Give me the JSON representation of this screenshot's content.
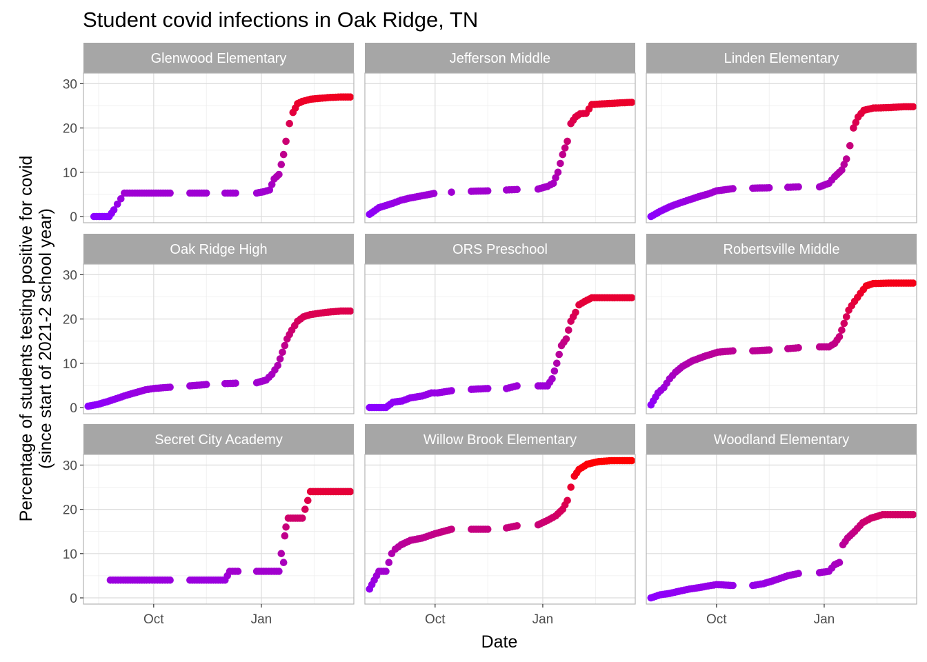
{
  "chart_data": {
    "type": "scatter",
    "layout": "facet_wrap",
    "title": "Student covid infections in Oak Ridge, TN",
    "xlabel": "Date",
    "ylabel_lines": [
      "Percentage of students testing positive for covid",
      "(since start of 2021-2 school year)"
    ],
    "x_range": [
      "2021-08-02",
      "2022-03-21"
    ],
    "y_range": [
      -1.4,
      32.4
    ],
    "x_ticks": [
      {
        "date": "2021-10-01",
        "label": "Oct"
      },
      {
        "date": "2022-01-01",
        "label": "Jan"
      }
    ],
    "x_minor_ticks": [
      "2021-08-15",
      "2021-11-15",
      "2022-02-15"
    ],
    "y_ticks": [
      0,
      10,
      20,
      30
    ],
    "y_minor_ticks": [
      5,
      15,
      25
    ],
    "color_scale": {
      "low": "#8b00ff",
      "high": "#ff0000",
      "min": 0,
      "max": 31
    },
    "grid": true,
    "facets": [
      {
        "name": "Glenwood Elementary",
        "series": [
          [
            "2021-08-11",
            0
          ],
          [
            "2021-08-18",
            0
          ],
          [
            "2021-08-24",
            0
          ],
          [
            "2021-08-28",
            1.5
          ],
          [
            "2021-08-31",
            2.8
          ],
          [
            "2021-09-03",
            4.0
          ],
          [
            "2021-09-06",
            5.3
          ],
          [
            "2021-09-15",
            5.3
          ],
          [
            "2021-09-25",
            5.3
          ],
          [
            "2021-10-03",
            5.3
          ],
          [
            "2021-10-15",
            5.3
          ],
          [
            "2021-11-01",
            5.3
          ],
          [
            "2021-11-15",
            5.3
          ],
          [
            "2021-12-01",
            5.3
          ],
          [
            "2021-12-10",
            5.3
          ],
          [
            "2021-12-28",
            5.3
          ],
          [
            "2022-01-03",
            5.6
          ],
          [
            "2022-01-08",
            6.0
          ],
          [
            "2022-01-12",
            8.5
          ],
          [
            "2022-01-16",
            9.5
          ],
          [
            "2022-01-20",
            14.0
          ],
          [
            "2022-01-22",
            17.0
          ],
          [
            "2022-01-25",
            21.0
          ],
          [
            "2022-01-28",
            23.5
          ],
          [
            "2022-02-01",
            25.5
          ],
          [
            "2022-02-05",
            26.0
          ],
          [
            "2022-02-12",
            26.5
          ],
          [
            "2022-02-20",
            26.7
          ],
          [
            "2022-03-01",
            26.9
          ],
          [
            "2022-03-10",
            27.0
          ],
          [
            "2022-03-18",
            27.0
          ]
        ]
      },
      {
        "name": "Jefferson Middle",
        "series": [
          [
            "2021-08-06",
            0.5
          ],
          [
            "2021-08-14",
            2.0
          ],
          [
            "2021-08-20",
            2.5
          ],
          [
            "2021-08-26",
            3.0
          ],
          [
            "2021-09-02",
            3.7
          ],
          [
            "2021-09-10",
            4.2
          ],
          [
            "2021-09-20",
            4.7
          ],
          [
            "2021-09-30",
            5.2
          ],
          [
            "2021-10-15",
            5.5
          ],
          [
            "2021-11-01",
            5.7
          ],
          [
            "2021-11-15",
            5.8
          ],
          [
            "2021-12-01",
            6.0
          ],
          [
            "2021-12-10",
            6.1
          ],
          [
            "2021-12-28",
            6.2
          ],
          [
            "2022-01-05",
            6.8
          ],
          [
            "2022-01-10",
            7.5
          ],
          [
            "2022-01-14",
            10.0
          ],
          [
            "2022-01-18",
            14.0
          ],
          [
            "2022-01-22",
            17.0
          ],
          [
            "2022-01-25",
            21.0
          ],
          [
            "2022-01-29",
            22.5
          ],
          [
            "2022-02-02",
            23.2
          ],
          [
            "2022-02-07",
            23.3
          ],
          [
            "2022-02-12",
            25.3
          ],
          [
            "2022-02-25",
            25.5
          ],
          [
            "2022-03-10",
            25.7
          ],
          [
            "2022-03-18",
            25.8
          ]
        ]
      },
      {
        "name": "Linden Elementary",
        "series": [
          [
            "2021-08-06",
            0
          ],
          [
            "2021-08-14",
            1.2
          ],
          [
            "2021-08-22",
            2.2
          ],
          [
            "2021-08-30",
            3.0
          ],
          [
            "2021-09-08",
            3.8
          ],
          [
            "2021-09-16",
            4.5
          ],
          [
            "2021-09-24",
            5.1
          ],
          [
            "2021-10-01",
            5.8
          ],
          [
            "2021-10-15",
            6.3
          ],
          [
            "2021-11-01",
            6.4
          ],
          [
            "2021-11-15",
            6.5
          ],
          [
            "2021-12-01",
            6.6
          ],
          [
            "2021-12-10",
            6.7
          ],
          [
            "2021-12-28",
            6.7
          ],
          [
            "2022-01-05",
            7.5
          ],
          [
            "2022-01-10",
            9.0
          ],
          [
            "2022-01-16",
            10.5
          ],
          [
            "2022-01-20",
            13.0
          ],
          [
            "2022-01-23",
            16.0
          ],
          [
            "2022-01-26",
            20.0
          ],
          [
            "2022-01-30",
            22.5
          ],
          [
            "2022-02-04",
            24.0
          ],
          [
            "2022-02-12",
            24.5
          ],
          [
            "2022-02-25",
            24.6
          ],
          [
            "2022-03-10",
            24.8
          ],
          [
            "2022-03-18",
            24.8
          ]
        ]
      },
      {
        "name": "Oak Ridge High",
        "series": [
          [
            "2021-08-06",
            0.3
          ],
          [
            "2021-08-14",
            0.7
          ],
          [
            "2021-08-22",
            1.3
          ],
          [
            "2021-08-30",
            2.0
          ],
          [
            "2021-09-08",
            2.8
          ],
          [
            "2021-09-16",
            3.4
          ],
          [
            "2021-09-24",
            4.0
          ],
          [
            "2021-10-01",
            4.3
          ],
          [
            "2021-10-15",
            4.6
          ],
          [
            "2021-11-01",
            4.9
          ],
          [
            "2021-11-15",
            5.2
          ],
          [
            "2021-12-01",
            5.4
          ],
          [
            "2021-12-10",
            5.5
          ],
          [
            "2021-12-28",
            5.6
          ],
          [
            "2022-01-05",
            6.2
          ],
          [
            "2022-01-10",
            7.5
          ],
          [
            "2022-01-15",
            9.5
          ],
          [
            "2022-01-19",
            12.5
          ],
          [
            "2022-01-23",
            15.5
          ],
          [
            "2022-01-27",
            17.5
          ],
          [
            "2022-02-01",
            19.5
          ],
          [
            "2022-02-06",
            20.5
          ],
          [
            "2022-02-12",
            21.0
          ],
          [
            "2022-02-25",
            21.5
          ],
          [
            "2022-03-10",
            21.8
          ],
          [
            "2022-03-18",
            21.8
          ]
        ]
      },
      {
        "name": "ORS Preschool",
        "series": [
          [
            "2021-08-06",
            0
          ],
          [
            "2021-08-14",
            0
          ],
          [
            "2021-08-20",
            0
          ],
          [
            "2021-08-26",
            1.2
          ],
          [
            "2021-09-03",
            1.5
          ],
          [
            "2021-09-10",
            2.2
          ],
          [
            "2021-09-20",
            2.6
          ],
          [
            "2021-09-28",
            3.3
          ],
          [
            "2021-10-03",
            3.3
          ],
          [
            "2021-10-15",
            3.8
          ],
          [
            "2021-11-01",
            4.1
          ],
          [
            "2021-11-15",
            4.3
          ],
          [
            "2021-12-01",
            4.3
          ],
          [
            "2021-12-10",
            4.9
          ],
          [
            "2021-12-28",
            4.9
          ],
          [
            "2022-01-05",
            4.9
          ],
          [
            "2022-01-09",
            6.5
          ],
          [
            "2022-01-13",
            10.0
          ],
          [
            "2022-01-17",
            14.0
          ],
          [
            "2022-01-21",
            15.5
          ],
          [
            "2022-01-25",
            19.5
          ],
          [
            "2022-01-29",
            21.5
          ],
          [
            "2022-02-01",
            23.2
          ],
          [
            "2022-02-06",
            24.0
          ],
          [
            "2022-02-12",
            24.8
          ],
          [
            "2022-02-25",
            24.8
          ],
          [
            "2022-03-10",
            24.8
          ],
          [
            "2022-03-18",
            24.8
          ]
        ]
      },
      {
        "name": "Robertsville Middle",
        "series": [
          [
            "2021-08-06",
            0.6
          ],
          [
            "2021-08-12",
            3.3
          ],
          [
            "2021-08-17",
            4.5
          ],
          [
            "2021-08-22",
            6.5
          ],
          [
            "2021-08-27",
            8.0
          ],
          [
            "2021-09-02",
            9.3
          ],
          [
            "2021-09-10",
            10.5
          ],
          [
            "2021-09-20",
            11.5
          ],
          [
            "2021-10-02",
            12.5
          ],
          [
            "2021-10-15",
            12.8
          ],
          [
            "2021-11-01",
            12.8
          ],
          [
            "2021-11-15",
            13.0
          ],
          [
            "2021-12-01",
            13.3
          ],
          [
            "2021-12-10",
            13.5
          ],
          [
            "2021-12-28",
            13.7
          ],
          [
            "2022-01-05",
            13.7
          ],
          [
            "2022-01-10",
            14.5
          ],
          [
            "2022-01-14",
            16.0
          ],
          [
            "2022-01-18",
            19.0
          ],
          [
            "2022-01-22",
            22.0
          ],
          [
            "2022-01-27",
            24.0
          ],
          [
            "2022-02-01",
            25.8
          ],
          [
            "2022-02-06",
            27.5
          ],
          [
            "2022-02-12",
            28.0
          ],
          [
            "2022-02-25",
            28.1
          ],
          [
            "2022-03-10",
            28.1
          ],
          [
            "2022-03-18",
            28.1
          ]
        ]
      },
      {
        "name": "Secret City Academy",
        "series": [
          [
            "2021-08-25",
            4.0
          ],
          [
            "2021-09-05",
            4.0
          ],
          [
            "2021-09-15",
            4.0
          ],
          [
            "2021-09-25",
            4.0
          ],
          [
            "2021-10-02",
            4.0
          ],
          [
            "2021-10-15",
            4.0
          ],
          [
            "2021-11-01",
            4.0
          ],
          [
            "2021-11-15",
            4.0
          ],
          [
            "2021-11-25",
            4.0
          ],
          [
            "2021-12-01",
            4.0
          ],
          [
            "2021-12-05",
            6.0
          ],
          [
            "2021-12-12",
            6.0
          ],
          [
            "2021-12-28",
            6.0
          ],
          [
            "2022-01-05",
            6.0
          ],
          [
            "2022-01-12",
            6.0
          ],
          [
            "2022-01-16",
            6.0
          ],
          [
            "2022-01-18",
            10.0
          ],
          [
            "2022-01-20",
            8.0
          ],
          [
            "2022-01-21",
            14.0
          ],
          [
            "2022-01-22",
            16.0
          ],
          [
            "2022-01-24",
            18.0
          ],
          [
            "2022-02-01",
            18.0
          ],
          [
            "2022-02-05",
            18.0
          ],
          [
            "2022-02-12",
            24.0
          ],
          [
            "2022-02-25",
            24.0
          ],
          [
            "2022-03-10",
            24.0
          ],
          [
            "2022-03-18",
            24.0
          ]
        ]
      },
      {
        "name": "Willow Brook Elementary",
        "series": [
          [
            "2021-08-06",
            2.0
          ],
          [
            "2021-08-14",
            6.0
          ],
          [
            "2021-08-20",
            6.0
          ],
          [
            "2021-08-25",
            10.0
          ],
          [
            "2021-08-28",
            11.0
          ],
          [
            "2021-09-02",
            12.0
          ],
          [
            "2021-09-10",
            13.0
          ],
          [
            "2021-09-20",
            13.5
          ],
          [
            "2021-10-01",
            14.5
          ],
          [
            "2021-10-15",
            15.5
          ],
          [
            "2021-11-01",
            15.5
          ],
          [
            "2021-11-15",
            15.5
          ],
          [
            "2021-12-01",
            15.8
          ],
          [
            "2021-12-10",
            16.3
          ],
          [
            "2021-12-28",
            16.5
          ],
          [
            "2022-01-05",
            17.5
          ],
          [
            "2022-01-12",
            18.5
          ],
          [
            "2022-01-18",
            20.0
          ],
          [
            "2022-01-22",
            22.0
          ],
          [
            "2022-01-25",
            25.0
          ],
          [
            "2022-01-28",
            27.5
          ],
          [
            "2022-02-01",
            29.0
          ],
          [
            "2022-02-08",
            30.2
          ],
          [
            "2022-02-18",
            30.8
          ],
          [
            "2022-03-01",
            31.0
          ],
          [
            "2022-03-10",
            31.0
          ],
          [
            "2022-03-18",
            31.0
          ]
        ]
      },
      {
        "name": "Woodland Elementary",
        "series": [
          [
            "2021-08-06",
            0
          ],
          [
            "2021-08-14",
            0.7
          ],
          [
            "2021-08-22",
            1.0
          ],
          [
            "2021-08-30",
            1.5
          ],
          [
            "2021-09-08",
            2.0
          ],
          [
            "2021-09-16",
            2.3
          ],
          [
            "2021-09-24",
            2.7
          ],
          [
            "2021-10-01",
            3.0
          ],
          [
            "2021-10-15",
            2.8
          ],
          [
            "2021-11-01",
            2.8
          ],
          [
            "2021-11-10",
            3.2
          ],
          [
            "2021-11-20",
            4.0
          ],
          [
            "2021-12-01",
            5.0
          ],
          [
            "2021-12-10",
            5.5
          ],
          [
            "2021-12-28",
            5.7
          ],
          [
            "2022-01-05",
            6.0
          ],
          [
            "2022-01-10",
            7.5
          ],
          [
            "2022-01-14",
            8.0
          ],
          [
            "2022-01-17",
            12.0
          ],
          [
            "2022-01-21",
            13.5
          ],
          [
            "2022-01-27",
            15.0
          ],
          [
            "2022-02-03",
            17.0
          ],
          [
            "2022-02-10",
            18.0
          ],
          [
            "2022-02-20",
            18.8
          ],
          [
            "2022-03-05",
            18.8
          ],
          [
            "2022-03-18",
            18.8
          ]
        ]
      }
    ]
  }
}
